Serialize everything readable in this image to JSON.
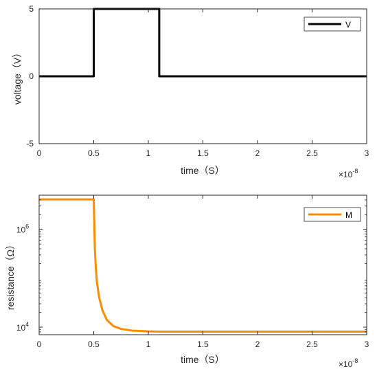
{
  "chart_data": [
    {
      "type": "line",
      "xlabel": "time（S）",
      "ylabel": "voltage（V）",
      "xlim": [
        0,
        3e-08
      ],
      "ylim": [
        -5,
        5
      ],
      "x_ticks": [
        "0",
        "0.5",
        "1",
        "1.5",
        "2",
        "2.5",
        "3"
      ],
      "x_tick_values": [
        0,
        5e-09,
        1e-08,
        1.5e-08,
        2e-08,
        2.5e-08,
        3e-08
      ],
      "x_exponent_base": "×10",
      "x_exponent_power": "-8",
      "y_ticks": [
        "5",
        "0",
        "-5"
      ],
      "y_tick_values": [
        5,
        0,
        -5
      ],
      "y_scale": "linear",
      "legend_position": "top-right",
      "series": [
        {
          "name": "V",
          "color": "#000000",
          "x": [
            0,
            5e-09,
            5e-09,
            1.1e-08,
            1.1e-08,
            3e-08
          ],
          "y": [
            0,
            0,
            5,
            5,
            0,
            0
          ]
        }
      ]
    },
    {
      "type": "line",
      "xlabel": "time（S）",
      "ylabel": "resistance（Ω）",
      "xlim": [
        0,
        3e-08
      ],
      "ylim": [
        7000,
        5000000
      ],
      "x_ticks": [
        "0",
        "0.5",
        "1",
        "1.5",
        "2",
        "2.5",
        "3"
      ],
      "x_tick_values": [
        0,
        5e-09,
        1e-08,
        1.5e-08,
        2e-08,
        2.5e-08,
        3e-08
      ],
      "x_exponent_base": "×10",
      "x_exponent_power": "-8",
      "y_scale": "log",
      "y_ticks": [
        {
          "value": 1000000,
          "base": "10",
          "power": "6"
        },
        {
          "value": 10000,
          "base": "10",
          "power": "4"
        }
      ],
      "legend_position": "top-right",
      "series": [
        {
          "name": "M",
          "color": "#ff8c00",
          "x": [
            0,
            5e-09,
            5.1e-09,
            5.2e-09,
            5.3e-09,
            5.5e-09,
            5.8e-09,
            6.2e-09,
            6.8e-09,
            7.5e-09,
            8.5e-09,
            1e-08,
            1.1e-08,
            1.5e-08,
            2e-08,
            2.5e-08,
            3e-08
          ],
          "y": [
            4100000,
            4100000,
            400000,
            150000,
            80000,
            40000,
            22000,
            14000,
            10500,
            9200,
            8500,
            8200,
            8100,
            8100,
            8100,
            8100,
            8100
          ]
        }
      ]
    }
  ]
}
